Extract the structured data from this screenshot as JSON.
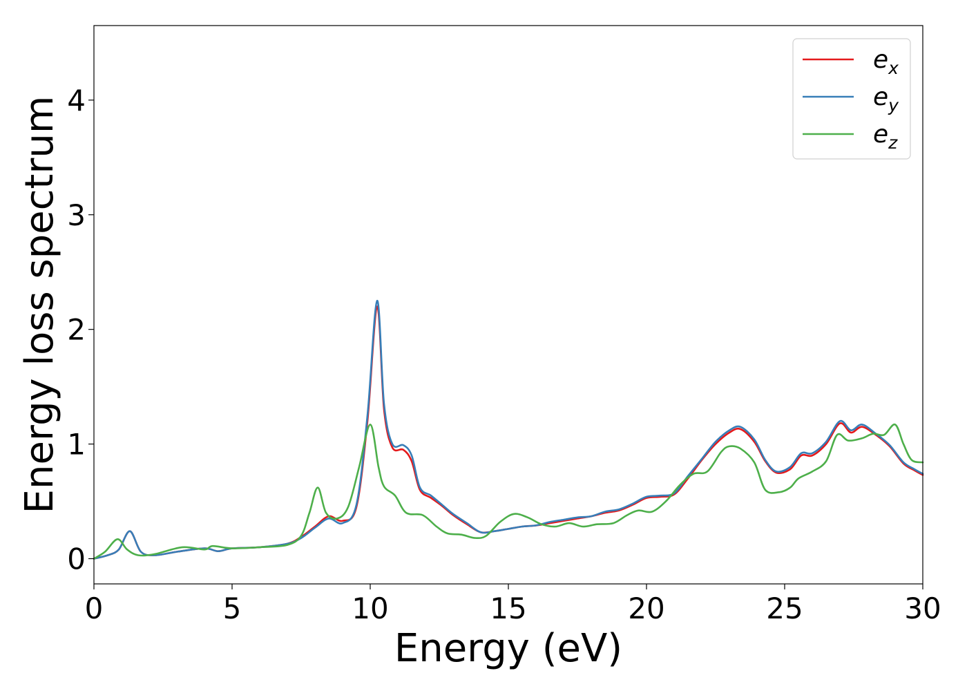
{
  "chart_data": {
    "type": "line",
    "title": "",
    "xlabel": "Energy (eV)",
    "ylabel": "Energy loss spectrum",
    "xlim": [
      0,
      30
    ],
    "ylim": [
      -0.22,
      4.65
    ],
    "xticks": [
      0,
      5,
      10,
      15,
      20,
      25,
      30
    ],
    "yticks": [
      0,
      1,
      2,
      3,
      4
    ],
    "grid": false,
    "legend": "top-right",
    "series": [
      {
        "name": "e_x",
        "label_base": "e",
        "label_sub": "x",
        "color": "#e41a1c",
        "points": [
          [
            0,
            0
          ],
          [
            0.5,
            0.03
          ],
          [
            0.9,
            0.08
          ],
          [
            1.3,
            0.24
          ],
          [
            1.7,
            0.06
          ],
          [
            2.2,
            0.03
          ],
          [
            3,
            0.06
          ],
          [
            4,
            0.09
          ],
          [
            4.5,
            0.065
          ],
          [
            5,
            0.09
          ],
          [
            6,
            0.1
          ],
          [
            7,
            0.13
          ],
          [
            7.5,
            0.19
          ],
          [
            8,
            0.28
          ],
          [
            8.5,
            0.37
          ],
          [
            9,
            0.33
          ],
          [
            9.5,
            0.45
          ],
          [
            9.9,
            1.2
          ],
          [
            10.25,
            2.2
          ],
          [
            10.5,
            1.3
          ],
          [
            10.8,
            0.97
          ],
          [
            11.2,
            0.95
          ],
          [
            11.5,
            0.85
          ],
          [
            11.8,
            0.6
          ],
          [
            12.2,
            0.53
          ],
          [
            12.6,
            0.46
          ],
          [
            13,
            0.38
          ],
          [
            13.5,
            0.3
          ],
          [
            14,
            0.23
          ],
          [
            14.5,
            0.24
          ],
          [
            15,
            0.26
          ],
          [
            15.5,
            0.28
          ],
          [
            16,
            0.29
          ],
          [
            16.5,
            0.31
          ],
          [
            17,
            0.33
          ],
          [
            17.5,
            0.35
          ],
          [
            18,
            0.37
          ],
          [
            18.5,
            0.4
          ],
          [
            19,
            0.42
          ],
          [
            19.5,
            0.47
          ],
          [
            20,
            0.53
          ],
          [
            20.5,
            0.54
          ],
          [
            21,
            0.56
          ],
          [
            21.5,
            0.7
          ],
          [
            22,
            0.86
          ],
          [
            22.5,
            1.0
          ],
          [
            23,
            1.1
          ],
          [
            23.4,
            1.13
          ],
          [
            23.9,
            1.02
          ],
          [
            24.3,
            0.85
          ],
          [
            24.7,
            0.75
          ],
          [
            25.2,
            0.78
          ],
          [
            25.6,
            0.9
          ],
          [
            26,
            0.9
          ],
          [
            26.5,
            1.0
          ],
          [
            27,
            1.18
          ],
          [
            27.4,
            1.1
          ],
          [
            27.8,
            1.15
          ],
          [
            28.3,
            1.08
          ],
          [
            28.8,
            0.98
          ],
          [
            29.3,
            0.83
          ],
          [
            29.7,
            0.77
          ],
          [
            30,
            0.73
          ]
        ]
      },
      {
        "name": "e_y",
        "label_base": "e",
        "label_sub": "y",
        "color": "#377eb8",
        "points": [
          [
            0,
            0
          ],
          [
            0.5,
            0.03
          ],
          [
            0.9,
            0.08
          ],
          [
            1.3,
            0.24
          ],
          [
            1.7,
            0.06
          ],
          [
            2.2,
            0.03
          ],
          [
            3,
            0.06
          ],
          [
            4,
            0.09
          ],
          [
            4.5,
            0.065
          ],
          [
            5,
            0.09
          ],
          [
            6,
            0.1
          ],
          [
            7,
            0.13
          ],
          [
            7.5,
            0.18
          ],
          [
            8,
            0.27
          ],
          [
            8.5,
            0.35
          ],
          [
            9,
            0.31
          ],
          [
            9.5,
            0.47
          ],
          [
            9.9,
            1.25
          ],
          [
            10.25,
            2.25
          ],
          [
            10.5,
            1.35
          ],
          [
            10.8,
            1.0
          ],
          [
            11.2,
            0.99
          ],
          [
            11.5,
            0.9
          ],
          [
            11.8,
            0.62
          ],
          [
            12.2,
            0.55
          ],
          [
            12.6,
            0.47
          ],
          [
            13,
            0.39
          ],
          [
            13.5,
            0.31
          ],
          [
            14,
            0.23
          ],
          [
            14.5,
            0.24
          ],
          [
            15,
            0.26
          ],
          [
            15.5,
            0.28
          ],
          [
            16,
            0.29
          ],
          [
            16.5,
            0.32
          ],
          [
            17,
            0.34
          ],
          [
            17.5,
            0.36
          ],
          [
            18,
            0.37
          ],
          [
            18.5,
            0.41
          ],
          [
            19,
            0.43
          ],
          [
            19.5,
            0.48
          ],
          [
            20,
            0.54
          ],
          [
            20.5,
            0.55
          ],
          [
            21,
            0.57
          ],
          [
            21.5,
            0.72
          ],
          [
            22,
            0.87
          ],
          [
            22.5,
            1.02
          ],
          [
            23,
            1.12
          ],
          [
            23.4,
            1.15
          ],
          [
            23.9,
            1.04
          ],
          [
            24.3,
            0.86
          ],
          [
            24.7,
            0.76
          ],
          [
            25.2,
            0.8
          ],
          [
            25.6,
            0.92
          ],
          [
            26,
            0.92
          ],
          [
            26.5,
            1.02
          ],
          [
            27,
            1.2
          ],
          [
            27.4,
            1.12
          ],
          [
            27.8,
            1.17
          ],
          [
            28.3,
            1.09
          ],
          [
            28.8,
            0.99
          ],
          [
            29.3,
            0.84
          ],
          [
            29.7,
            0.78
          ],
          [
            30,
            0.74
          ]
        ]
      },
      {
        "name": "e_z",
        "label_base": "e",
        "label_sub": "z",
        "color": "#4daf4a",
        "points": [
          [
            0,
            0
          ],
          [
            0.4,
            0.06
          ],
          [
            0.85,
            0.17
          ],
          [
            1.2,
            0.08
          ],
          [
            1.6,
            0.03
          ],
          [
            2.2,
            0.04
          ],
          [
            3.2,
            0.1
          ],
          [
            4,
            0.08
          ],
          [
            4.3,
            0.11
          ],
          [
            5,
            0.09
          ],
          [
            6,
            0.1
          ],
          [
            7,
            0.12
          ],
          [
            7.5,
            0.2
          ],
          [
            7.8,
            0.4
          ],
          [
            8.1,
            0.62
          ],
          [
            8.4,
            0.4
          ],
          [
            8.8,
            0.35
          ],
          [
            9.2,
            0.45
          ],
          [
            9.6,
            0.8
          ],
          [
            10,
            1.17
          ],
          [
            10.3,
            0.8
          ],
          [
            10.5,
            0.63
          ],
          [
            10.9,
            0.55
          ],
          [
            11.3,
            0.4
          ],
          [
            11.9,
            0.38
          ],
          [
            12.4,
            0.28
          ],
          [
            12.8,
            0.22
          ],
          [
            13.3,
            0.21
          ],
          [
            13.8,
            0.18
          ],
          [
            14.2,
            0.2
          ],
          [
            14.7,
            0.32
          ],
          [
            15.2,
            0.39
          ],
          [
            15.7,
            0.36
          ],
          [
            16.2,
            0.3
          ],
          [
            16.7,
            0.28
          ],
          [
            17.2,
            0.31
          ],
          [
            17.7,
            0.28
          ],
          [
            18.2,
            0.3
          ],
          [
            18.8,
            0.31
          ],
          [
            19.3,
            0.38
          ],
          [
            19.7,
            0.42
          ],
          [
            20.2,
            0.41
          ],
          [
            20.7,
            0.5
          ],
          [
            21.2,
            0.64
          ],
          [
            21.7,
            0.74
          ],
          [
            22.2,
            0.76
          ],
          [
            22.7,
            0.93
          ],
          [
            23,
            0.98
          ],
          [
            23.4,
            0.96
          ],
          [
            23.9,
            0.84
          ],
          [
            24.3,
            0.6
          ],
          [
            24.8,
            0.58
          ],
          [
            25.2,
            0.62
          ],
          [
            25.5,
            0.7
          ],
          [
            26,
            0.76
          ],
          [
            26.5,
            0.85
          ],
          [
            26.9,
            1.08
          ],
          [
            27.3,
            1.03
          ],
          [
            27.8,
            1.05
          ],
          [
            28.2,
            1.09
          ],
          [
            28.6,
            1.08
          ],
          [
            29,
            1.17
          ],
          [
            29.3,
            1.0
          ],
          [
            29.6,
            0.86
          ],
          [
            30,
            0.84
          ]
        ]
      }
    ]
  }
}
